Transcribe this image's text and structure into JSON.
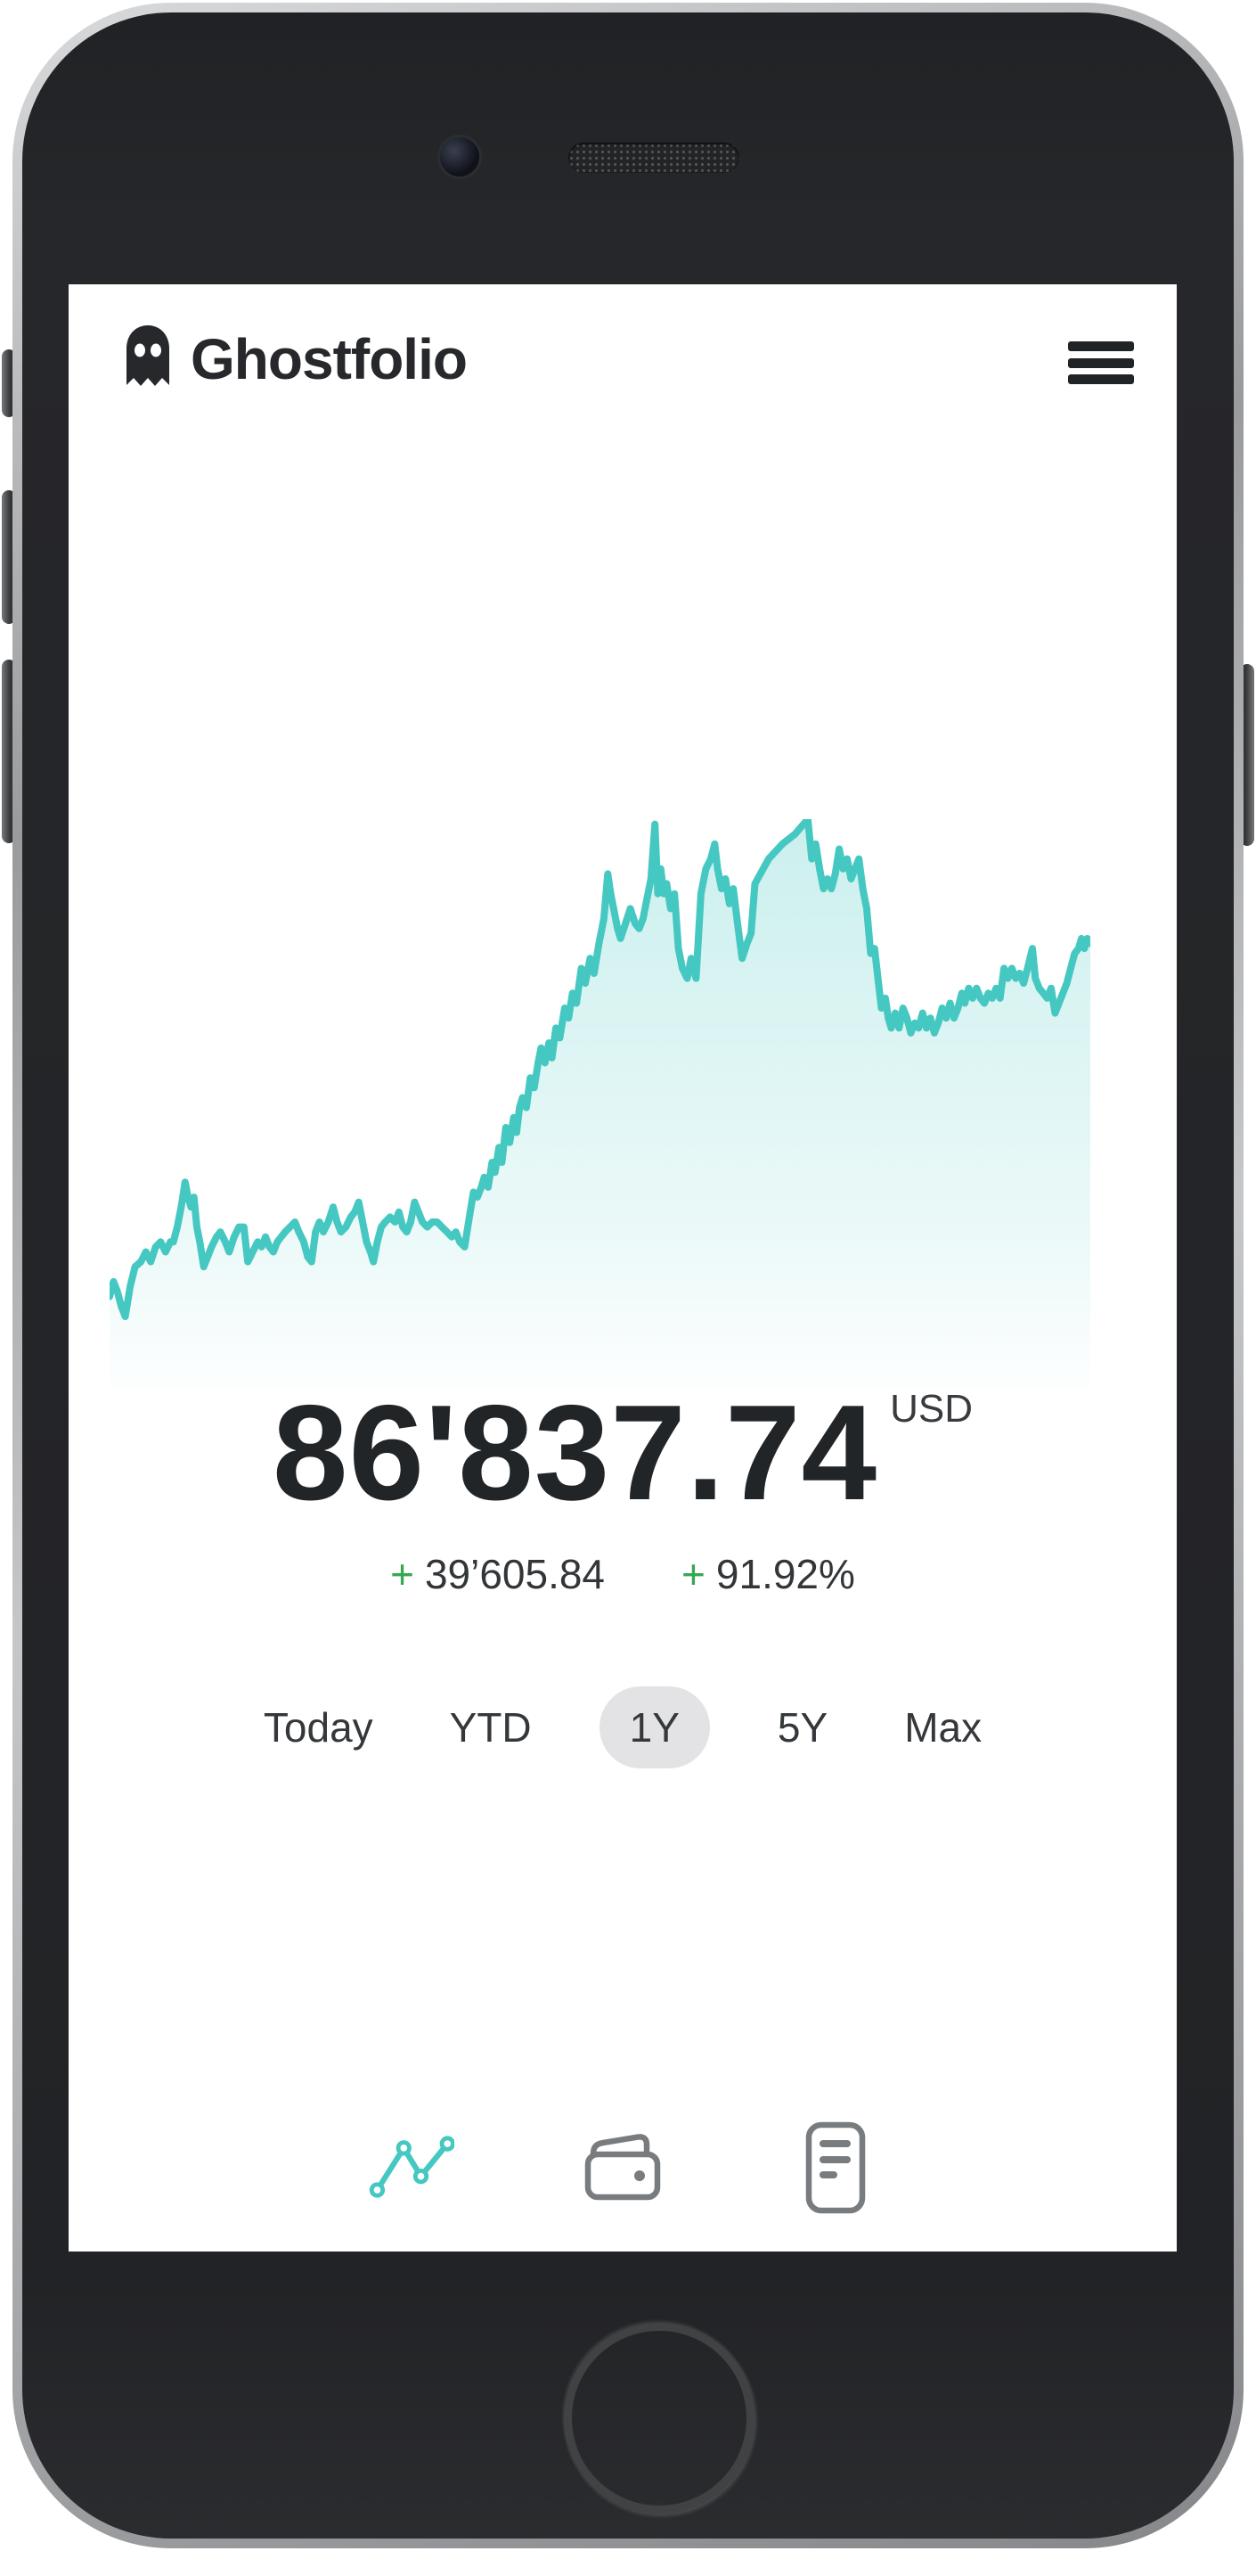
{
  "app": {
    "title": "Ghostfolio"
  },
  "summary": {
    "value": "86'837.74",
    "currency": "USD",
    "changes": [
      {
        "sign": "+",
        "value": "39’605.84"
      },
      {
        "sign": "+",
        "value": "91.92%"
      }
    ]
  },
  "ranges": {
    "items": [
      {
        "label": "Today",
        "active": false
      },
      {
        "label": "YTD",
        "active": false
      },
      {
        "label": "1Y",
        "active": true
      },
      {
        "label": "5Y",
        "active": false
      },
      {
        "label": "Max",
        "active": false
      }
    ]
  },
  "nav": {
    "items": [
      {
        "name": "line-chart",
        "active": true
      },
      {
        "name": "wallet",
        "active": false
      },
      {
        "name": "reader",
        "active": false
      }
    ]
  },
  "colors": {
    "accent_teal": "#45C8C1",
    "positive_green": "#34A853",
    "text_dark": "#26282B",
    "pill_gray": "#E3E3E5",
    "nav_gray": "#797C7F"
  },
  "chart_data": {
    "type": "area",
    "x_range": [
      0,
      1000
    ],
    "v_range": [
      0,
      100
    ],
    "line_color": "#45C8C1",
    "fill_opacity_top": 0.28,
    "series": [
      [
        0,
        4
      ],
      [
        4,
        7
      ],
      [
        8,
        5
      ],
      [
        12,
        2
      ],
      [
        16,
        0
      ],
      [
        21,
        6
      ],
      [
        26,
        10
      ],
      [
        32,
        11
      ],
      [
        37,
        13
      ],
      [
        42,
        11
      ],
      [
        47,
        14
      ],
      [
        52,
        15
      ],
      [
        57,
        13
      ],
      [
        62,
        15
      ],
      [
        65,
        15
      ],
      [
        69,
        18
      ],
      [
        73,
        22
      ],
      [
        77,
        27
      ],
      [
        80,
        24
      ],
      [
        83,
        22
      ],
      [
        86,
        24
      ],
      [
        89,
        18
      ],
      [
        92,
        15
      ],
      [
        96,
        10
      ],
      [
        100,
        12
      ],
      [
        104,
        14
      ],
      [
        109,
        16
      ],
      [
        113,
        17
      ],
      [
        118,
        15
      ],
      [
        122,
        13
      ],
      [
        127,
        16
      ],
      [
        132,
        18
      ],
      [
        137,
        18
      ],
      [
        141,
        11
      ],
      [
        146,
        13
      ],
      [
        151,
        15
      ],
      [
        155,
        14
      ],
      [
        159,
        16
      ],
      [
        163,
        14
      ],
      [
        167,
        13
      ],
      [
        171,
        15
      ],
      [
        175,
        16
      ],
      [
        179,
        17
      ],
      [
        184,
        18
      ],
      [
        189,
        19
      ],
      [
        193,
        17
      ],
      [
        198,
        15
      ],
      [
        202,
        12
      ],
      [
        206,
        11
      ],
      [
        210,
        17
      ],
      [
        214,
        19
      ],
      [
        218,
        17
      ],
      [
        223,
        19
      ],
      [
        228,
        22
      ],
      [
        232,
        19
      ],
      [
        236,
        17
      ],
      [
        241,
        18
      ],
      [
        246,
        20
      ],
      [
        250,
        21
      ],
      [
        254,
        23
      ],
      [
        258,
        19
      ],
      [
        262,
        15
      ],
      [
        266,
        13
      ],
      [
        269,
        11
      ],
      [
        273,
        15
      ],
      [
        277,
        18
      ],
      [
        281,
        19
      ],
      [
        286,
        20
      ],
      [
        291,
        19
      ],
      [
        295,
        21
      ],
      [
        299,
        18
      ],
      [
        303,
        17
      ],
      [
        307,
        19
      ],
      [
        311,
        23
      ],
      [
        315,
        21
      ],
      [
        319,
        19
      ],
      [
        324,
        18
      ],
      [
        329,
        19
      ],
      [
        334,
        19
      ],
      [
        339,
        18
      ],
      [
        344,
        17
      ],
      [
        349,
        16
      ],
      [
        353,
        17
      ],
      [
        357,
        15
      ],
      [
        362,
        14
      ],
      [
        366,
        19
      ],
      [
        371,
        25
      ],
      [
        375,
        24
      ],
      [
        379,
        26
      ],
      [
        382,
        28
      ],
      [
        386,
        26
      ],
      [
        390,
        31
      ],
      [
        393,
        29
      ],
      [
        397,
        34
      ],
      [
        400,
        31
      ],
      [
        404,
        38
      ],
      [
        408,
        35
      ],
      [
        412,
        40
      ],
      [
        415,
        37
      ],
      [
        418,
        42
      ],
      [
        421,
        44
      ],
      [
        425,
        42
      ],
      [
        429,
        48
      ],
      [
        433,
        46
      ],
      [
        437,
        51
      ],
      [
        440,
        54
      ],
      [
        444,
        51
      ],
      [
        448,
        55
      ],
      [
        451,
        52
      ],
      [
        455,
        58
      ],
      [
        459,
        56
      ],
      [
        464,
        62
      ],
      [
        468,
        60
      ],
      [
        472,
        65
      ],
      [
        476,
        63
      ],
      [
        481,
        70
      ],
      [
        485,
        67
      ],
      [
        490,
        72
      ],
      [
        494,
        69
      ],
      [
        499,
        75
      ],
      [
        504,
        80
      ],
      [
        508,
        89
      ],
      [
        511,
        85
      ],
      [
        514,
        82
      ],
      [
        518,
        78
      ],
      [
        521,
        76
      ],
      [
        526,
        79
      ],
      [
        531,
        82
      ],
      [
        536,
        79
      ],
      [
        540,
        78
      ],
      [
        544,
        80
      ],
      [
        548,
        84
      ],
      [
        552,
        88
      ],
      [
        556,
        99
      ],
      [
        559,
        85
      ],
      [
        562,
        90
      ],
      [
        565,
        85
      ],
      [
        568,
        87
      ],
      [
        572,
        82
      ],
      [
        576,
        85
      ],
      [
        580,
        74
      ],
      [
        584,
        70
      ],
      [
        589,
        68
      ],
      [
        593,
        72
      ],
      [
        598,
        68
      ],
      [
        603,
        85
      ],
      [
        608,
        90
      ],
      [
        613,
        92
      ],
      [
        617,
        95
      ],
      [
        620,
        90
      ],
      [
        624,
        86
      ],
      [
        628,
        88
      ],
      [
        632,
        83
      ],
      [
        636,
        86
      ],
      [
        641,
        78
      ],
      [
        645,
        72
      ],
      [
        650,
        75
      ],
      [
        654,
        77
      ],
      [
        658,
        87
      ],
      [
        672,
        92
      ],
      [
        686,
        95
      ],
      [
        699,
        97
      ],
      [
        712,
        100
      ],
      [
        716,
        92
      ],
      [
        720,
        95
      ],
      [
        724,
        90
      ],
      [
        728,
        86
      ],
      [
        732,
        88
      ],
      [
        736,
        86
      ],
      [
        740,
        89
      ],
      [
        744,
        94
      ],
      [
        748,
        90
      ],
      [
        752,
        92
      ],
      [
        756,
        88
      ],
      [
        760,
        90
      ],
      [
        764,
        92
      ],
      [
        768,
        86
      ],
      [
        772,
        82
      ],
      [
        776,
        73
      ],
      [
        780,
        74
      ],
      [
        784,
        67
      ],
      [
        787,
        62
      ],
      [
        791,
        64
      ],
      [
        794,
        60
      ],
      [
        797,
        58
      ],
      [
        801,
        61
      ],
      [
        805,
        58
      ],
      [
        809,
        62
      ],
      [
        813,
        60
      ],
      [
        817,
        57
      ],
      [
        821,
        59
      ],
      [
        825,
        58
      ],
      [
        829,
        61
      ],
      [
        833,
        58
      ],
      [
        837,
        60
      ],
      [
        841,
        57
      ],
      [
        845,
        59
      ],
      [
        849,
        62
      ],
      [
        853,
        60
      ],
      [
        857,
        63
      ],
      [
        861,
        60
      ],
      [
        865,
        62
      ],
      [
        869,
        65
      ],
      [
        872,
        63
      ],
      [
        876,
        66
      ],
      [
        880,
        64
      ],
      [
        884,
        66
      ],
      [
        888,
        64
      ],
      [
        892,
        63
      ],
      [
        896,
        65
      ],
      [
        900,
        64
      ],
      [
        904,
        66
      ],
      [
        908,
        64
      ],
      [
        912,
        70
      ],
      [
        916,
        68
      ],
      [
        920,
        70
      ],
      [
        924,
        68
      ],
      [
        928,
        69
      ],
      [
        932,
        67
      ],
      [
        936,
        70
      ],
      [
        941,
        74
      ],
      [
        944,
        68
      ],
      [
        948,
        66
      ],
      [
        952,
        65
      ],
      [
        956,
        64
      ],
      [
        960,
        66
      ],
      [
        964,
        61
      ],
      [
        968,
        63
      ],
      [
        972,
        65
      ],
      [
        976,
        67
      ],
      [
        980,
        70
      ],
      [
        984,
        73
      ],
      [
        988,
        74
      ],
      [
        991,
        76
      ],
      [
        994,
        74
      ],
      [
        997,
        76
      ],
      [
        1000,
        75
      ]
    ]
  }
}
